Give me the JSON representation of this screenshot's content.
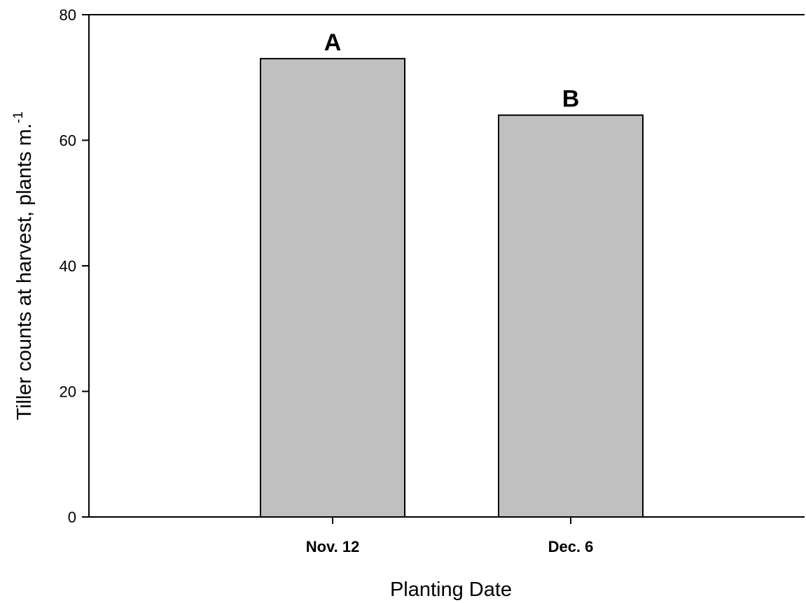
{
  "chart_data": {
    "type": "bar",
    "categories": [
      "Nov. 12",
      "Dec. 6"
    ],
    "values": [
      73,
      64
    ],
    "significance_letters": [
      "A",
      "B"
    ],
    "xlabel": "Planting Date",
    "ylabel": "Tiller counts at harvest, plants m.",
    "ylabel_superscript": "-1",
    "ylim": [
      0,
      80
    ],
    "yticks": [
      "0",
      "20",
      "40",
      "60",
      "80"
    ],
    "bar_color": "#c0c0c0",
    "grid": false
  }
}
